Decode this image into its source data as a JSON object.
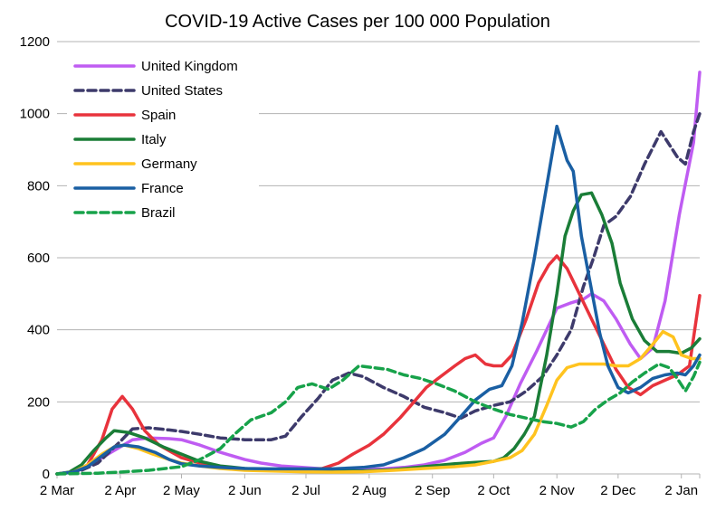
{
  "chart_data": {
    "type": "line",
    "title": "COVID-19 Active Cases per 100 000 Population",
    "xlabel": "",
    "ylabel": "",
    "ylim": [
      0,
      1200
    ],
    "yticks": [
      0,
      200,
      400,
      600,
      800,
      1000,
      1200
    ],
    "xlim": [
      0,
      315
    ],
    "xticks": [
      {
        "label": "2 Mar",
        "day": 0
      },
      {
        "label": "2 Apr",
        "day": 31
      },
      {
        "label": "2 May",
        "day": 61
      },
      {
        "label": "2 Jun",
        "day": 92
      },
      {
        "label": "2 Jul",
        "day": 122
      },
      {
        "label": "2 Aug",
        "day": 153
      },
      {
        "label": "2 Sep",
        "day": 184
      },
      {
        "label": "2 Oct",
        "day": 214
      },
      {
        "label": "2 Nov",
        "day": 245
      },
      {
        "label": "2 Dec",
        "day": 275
      },
      {
        "label": "2 Jan",
        "day": 306
      }
    ],
    "grid": "horizontal",
    "legend_position": "top-left",
    "series": [
      {
        "name": "United Kingdom",
        "color": "#bf5cf2",
        "dash": "solid",
        "points": [
          [
            0,
            0
          ],
          [
            8,
            5
          ],
          [
            15,
            20
          ],
          [
            22,
            45
          ],
          [
            31,
            75
          ],
          [
            37,
            95
          ],
          [
            45,
            100
          ],
          [
            55,
            98
          ],
          [
            61,
            95
          ],
          [
            70,
            80
          ],
          [
            80,
            60
          ],
          [
            92,
            40
          ],
          [
            100,
            30
          ],
          [
            110,
            22
          ],
          [
            120,
            18
          ],
          [
            130,
            14
          ],
          [
            140,
            12
          ],
          [
            150,
            12
          ],
          [
            160,
            14
          ],
          [
            170,
            18
          ],
          [
            180,
            25
          ],
          [
            190,
            38
          ],
          [
            200,
            60
          ],
          [
            208,
            85
          ],
          [
            214,
            100
          ],
          [
            220,
            160
          ],
          [
            227,
            250
          ],
          [
            235,
            340
          ],
          [
            245,
            460
          ],
          [
            252,
            475
          ],
          [
            258,
            485
          ],
          [
            262,
            500
          ],
          [
            268,
            480
          ],
          [
            274,
            430
          ],
          [
            281,
            360
          ],
          [
            286,
            320
          ],
          [
            292,
            350
          ],
          [
            298,
            480
          ],
          [
            305,
            720
          ],
          [
            312,
            920
          ],
          [
            315,
            1115
          ]
        ]
      },
      {
        "name": "United States",
        "color": "#3d3a6b",
        "dash": "dashed",
        "points": [
          [
            0,
            0
          ],
          [
            10,
            5
          ],
          [
            20,
            30
          ],
          [
            31,
            90
          ],
          [
            37,
            125
          ],
          [
            45,
            128
          ],
          [
            55,
            122
          ],
          [
            61,
            118
          ],
          [
            70,
            110
          ],
          [
            80,
            100
          ],
          [
            92,
            95
          ],
          [
            105,
            95
          ],
          [
            112,
            105
          ],
          [
            120,
            160
          ],
          [
            128,
            210
          ],
          [
            135,
            260
          ],
          [
            143,
            280
          ],
          [
            150,
            270
          ],
          [
            160,
            240
          ],
          [
            170,
            215
          ],
          [
            180,
            185
          ],
          [
            190,
            170
          ],
          [
            198,
            155
          ],
          [
            205,
            175
          ],
          [
            214,
            190
          ],
          [
            222,
            200
          ],
          [
            230,
            230
          ],
          [
            238,
            270
          ],
          [
            245,
            330
          ],
          [
            252,
            400
          ],
          [
            258,
            520
          ],
          [
            263,
            600
          ],
          [
            268,
            690
          ],
          [
            274,
            715
          ],
          [
            281,
            770
          ],
          [
            288,
            860
          ],
          [
            296,
            950
          ],
          [
            304,
            880
          ],
          [
            308,
            860
          ],
          [
            312,
            950
          ],
          [
            315,
            1000
          ]
        ]
      },
      {
        "name": "Spain",
        "color": "#e8333c",
        "dash": "solid",
        "points": [
          [
            0,
            0
          ],
          [
            8,
            5
          ],
          [
            15,
            25
          ],
          [
            22,
            95
          ],
          [
            27,
            180
          ],
          [
            32,
            215
          ],
          [
            37,
            180
          ],
          [
            43,
            120
          ],
          [
            50,
            80
          ],
          [
            61,
            45
          ],
          [
            70,
            30
          ],
          [
            80,
            18
          ],
          [
            92,
            12
          ],
          [
            105,
            10
          ],
          [
            120,
            10
          ],
          [
            130,
            15
          ],
          [
            138,
            30
          ],
          [
            145,
            55
          ],
          [
            153,
            80
          ],
          [
            160,
            110
          ],
          [
            168,
            155
          ],
          [
            175,
            200
          ],
          [
            181,
            240
          ],
          [
            188,
            270
          ],
          [
            195,
            300
          ],
          [
            200,
            320
          ],
          [
            205,
            330
          ],
          [
            210,
            305
          ],
          [
            214,
            300
          ],
          [
            218,
            300
          ],
          [
            223,
            330
          ],
          [
            230,
            430
          ],
          [
            236,
            530
          ],
          [
            241,
            580
          ],
          [
            245,
            605
          ],
          [
            250,
            570
          ],
          [
            256,
            500
          ],
          [
            262,
            430
          ],
          [
            268,
            360
          ],
          [
            274,
            290
          ],
          [
            280,
            240
          ],
          [
            286,
            220
          ],
          [
            292,
            245
          ],
          [
            298,
            260
          ],
          [
            304,
            275
          ],
          [
            310,
            300
          ],
          [
            315,
            495
          ]
        ]
      },
      {
        "name": "Italy",
        "color": "#1a7d37",
        "dash": "solid",
        "points": [
          [
            0,
            0
          ],
          [
            6,
            5
          ],
          [
            12,
            25
          ],
          [
            18,
            65
          ],
          [
            24,
            100
          ],
          [
            28,
            120
          ],
          [
            35,
            115
          ],
          [
            43,
            100
          ],
          [
            52,
            75
          ],
          [
            61,
            55
          ],
          [
            70,
            35
          ],
          [
            80,
            22
          ],
          [
            92,
            15
          ],
          [
            105,
            10
          ],
          [
            120,
            8
          ],
          [
            135,
            7
          ],
          [
            150,
            8
          ],
          [
            165,
            12
          ],
          [
            180,
            20
          ],
          [
            195,
            28
          ],
          [
            205,
            32
          ],
          [
            214,
            35
          ],
          [
            219,
            45
          ],
          [
            224,
            70
          ],
          [
            229,
            110
          ],
          [
            234,
            160
          ],
          [
            240,
            330
          ],
          [
            245,
            500
          ],
          [
            249,
            660
          ],
          [
            253,
            730
          ],
          [
            257,
            775
          ],
          [
            262,
            780
          ],
          [
            267,
            720
          ],
          [
            272,
            640
          ],
          [
            276,
            530
          ],
          [
            282,
            430
          ],
          [
            288,
            370
          ],
          [
            294,
            340
          ],
          [
            300,
            340
          ],
          [
            306,
            335
          ],
          [
            311,
            350
          ],
          [
            315,
            375
          ]
        ]
      },
      {
        "name": "Germany",
        "color": "#ffc31f",
        "dash": "solid",
        "points": [
          [
            0,
            0
          ],
          [
            8,
            5
          ],
          [
            15,
            25
          ],
          [
            22,
            55
          ],
          [
            28,
            75
          ],
          [
            33,
            80
          ],
          [
            40,
            70
          ],
          [
            47,
            55
          ],
          [
            55,
            40
          ],
          [
            61,
            30
          ],
          [
            70,
            22
          ],
          [
            80,
            15
          ],
          [
            92,
            10
          ],
          [
            105,
            8
          ],
          [
            120,
            6
          ],
          [
            135,
            5
          ],
          [
            150,
            6
          ],
          [
            165,
            10
          ],
          [
            180,
            15
          ],
          [
            195,
            20
          ],
          [
            205,
            25
          ],
          [
            214,
            35
          ],
          [
            222,
            45
          ],
          [
            228,
            65
          ],
          [
            234,
            110
          ],
          [
            240,
            190
          ],
          [
            245,
            260
          ],
          [
            250,
            295
          ],
          [
            256,
            305
          ],
          [
            262,
            305
          ],
          [
            268,
            305
          ],
          [
            274,
            300
          ],
          [
            280,
            300
          ],
          [
            286,
            320
          ],
          [
            292,
            360
          ],
          [
            297,
            395
          ],
          [
            302,
            380
          ],
          [
            306,
            330
          ],
          [
            311,
            320
          ],
          [
            315,
            320
          ]
        ]
      },
      {
        "name": "France",
        "color": "#1a5fa3",
        "dash": "solid",
        "points": [
          [
            0,
            0
          ],
          [
            8,
            5
          ],
          [
            15,
            20
          ],
          [
            22,
            50
          ],
          [
            28,
            75
          ],
          [
            33,
            80
          ],
          [
            40,
            75
          ],
          [
            48,
            60
          ],
          [
            55,
            40
          ],
          [
            61,
            28
          ],
          [
            70,
            22
          ],
          [
            80,
            18
          ],
          [
            92,
            15
          ],
          [
            105,
            14
          ],
          [
            120,
            14
          ],
          [
            135,
            14
          ],
          [
            150,
            18
          ],
          [
            160,
            25
          ],
          [
            170,
            45
          ],
          [
            180,
            70
          ],
          [
            190,
            110
          ],
          [
            198,
            160
          ],
          [
            205,
            205
          ],
          [
            212,
            235
          ],
          [
            218,
            245
          ],
          [
            223,
            300
          ],
          [
            228,
            420
          ],
          [
            234,
            600
          ],
          [
            240,
            800
          ],
          [
            245,
            965
          ],
          [
            250,
            870
          ],
          [
            253,
            840
          ],
          [
            257,
            660
          ],
          [
            261,
            540
          ],
          [
            266,
            390
          ],
          [
            270,
            300
          ],
          [
            275,
            240
          ],
          [
            280,
            225
          ],
          [
            286,
            240
          ],
          [
            292,
            265
          ],
          [
            298,
            275
          ],
          [
            304,
            280
          ],
          [
            308,
            275
          ],
          [
            312,
            300
          ],
          [
            315,
            330
          ]
        ]
      },
      {
        "name": "Brazil",
        "color": "#17a24a",
        "dash": "dashed",
        "points": [
          [
            0,
            0
          ],
          [
            20,
            2
          ],
          [
            31,
            5
          ],
          [
            45,
            10
          ],
          [
            61,
            20
          ],
          [
            70,
            40
          ],
          [
            80,
            70
          ],
          [
            87,
            110
          ],
          [
            95,
            150
          ],
          [
            105,
            170
          ],
          [
            112,
            200
          ],
          [
            118,
            240
          ],
          [
            125,
            250
          ],
          [
            133,
            235
          ],
          [
            140,
            260
          ],
          [
            148,
            300
          ],
          [
            155,
            295
          ],
          [
            162,
            290
          ],
          [
            170,
            275
          ],
          [
            178,
            265
          ],
          [
            186,
            250
          ],
          [
            195,
            230
          ],
          [
            205,
            200
          ],
          [
            214,
            180
          ],
          [
            222,
            165
          ],
          [
            230,
            155
          ],
          [
            238,
            145
          ],
          [
            245,
            140
          ],
          [
            252,
            130
          ],
          [
            258,
            145
          ],
          [
            264,
            180
          ],
          [
            270,
            205
          ],
          [
            276,
            225
          ],
          [
            282,
            255
          ],
          [
            288,
            280
          ],
          [
            295,
            305
          ],
          [
            300,
            295
          ],
          [
            304,
            265
          ],
          [
            308,
            230
          ],
          [
            312,
            270
          ],
          [
            315,
            310
          ]
        ]
      }
    ]
  }
}
